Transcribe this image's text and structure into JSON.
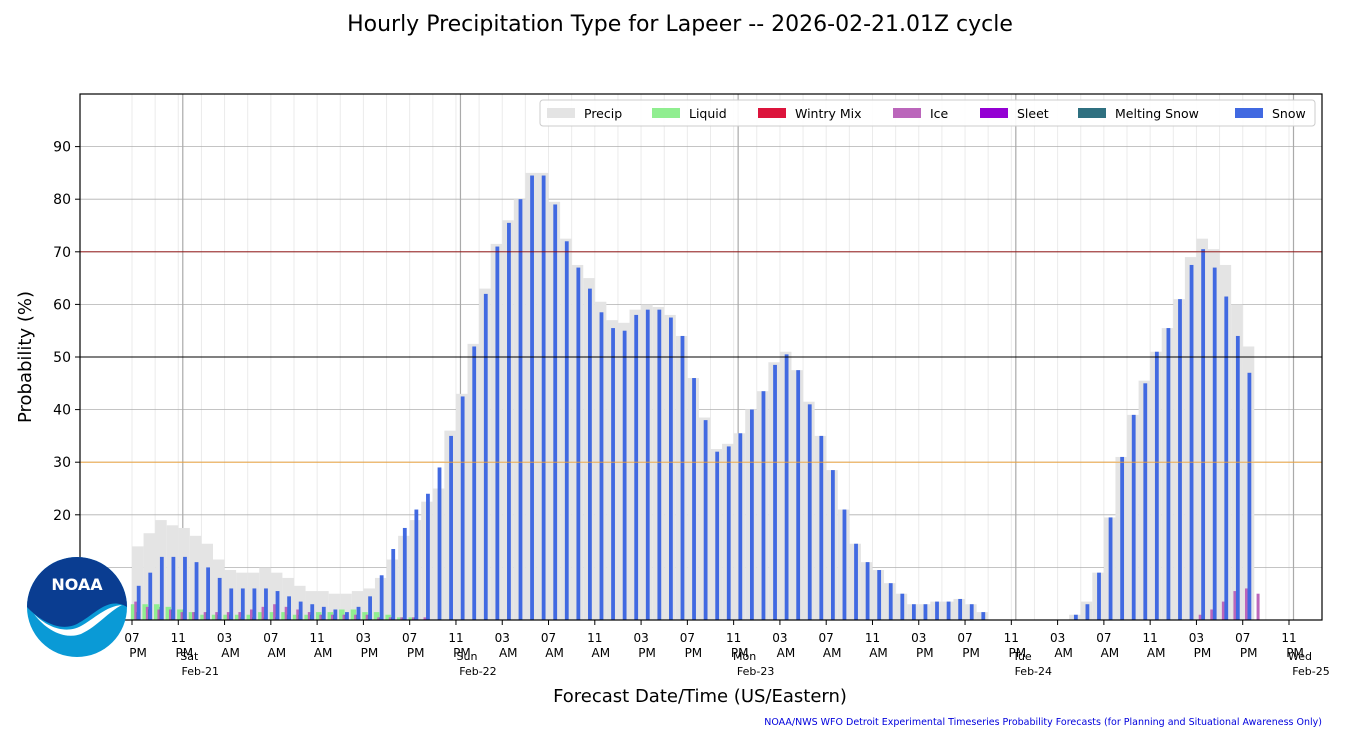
{
  "chart_data": {
    "type": "bar",
    "title": "Hourly Precipitation Type for Lapeer -- 2026-02-21.01Z cycle",
    "xlabel": "Forecast Date/Time (US/Eastern)",
    "ylabel": "Probability (%)",
    "ylim": [
      0,
      100
    ],
    "yticks": [
      20,
      30,
      40,
      50,
      60,
      70,
      80,
      90
    ],
    "grid": true,
    "legend_position": "top-right",
    "reference_lines": [
      {
        "value": 30,
        "color": "#f0a030"
      },
      {
        "value": 50,
        "color": "#000000"
      },
      {
        "value": 70,
        "color": "#8b0000"
      }
    ],
    "x_start": "2026-02-20 19:00",
    "hours_per_bar": 1,
    "tick_labels": [
      {
        "hour": 0,
        "line1": "07",
        "line2": "PM"
      },
      {
        "hour": 4,
        "line1": "11",
        "line2": "PM",
        "day": "Sat",
        "date": "Feb-21"
      },
      {
        "hour": 8,
        "line1": "03",
        "line2": "AM"
      },
      {
        "hour": 12,
        "line1": "07",
        "line2": "AM"
      },
      {
        "hour": 16,
        "line1": "11",
        "line2": "AM"
      },
      {
        "hour": 20,
        "line1": "03",
        "line2": "PM"
      },
      {
        "hour": 24,
        "line1": "07",
        "line2": "PM"
      },
      {
        "hour": 28,
        "line1": "11",
        "line2": "PM",
        "day": "Sun",
        "date": "Feb-22"
      },
      {
        "hour": 32,
        "line1": "03",
        "line2": "AM"
      },
      {
        "hour": 36,
        "line1": "07",
        "line2": "AM"
      },
      {
        "hour": 40,
        "line1": "11",
        "line2": "AM"
      },
      {
        "hour": 44,
        "line1": "03",
        "line2": "PM"
      },
      {
        "hour": 48,
        "line1": "07",
        "line2": "PM"
      },
      {
        "hour": 52,
        "line1": "11",
        "line2": "PM",
        "day": "Mon",
        "date": "Feb-23"
      },
      {
        "hour": 56,
        "line1": "03",
        "line2": "AM"
      },
      {
        "hour": 60,
        "line1": "07",
        "line2": "AM"
      },
      {
        "hour": 64,
        "line1": "11",
        "line2": "AM"
      },
      {
        "hour": 68,
        "line1": "03",
        "line2": "PM"
      },
      {
        "hour": 72,
        "line1": "07",
        "line2": "PM"
      },
      {
        "hour": 76,
        "line1": "11",
        "line2": "PM",
        "day": "Tue",
        "date": "Feb-24"
      },
      {
        "hour": 80,
        "line1": "03",
        "line2": "AM"
      },
      {
        "hour": 84,
        "line1": "07",
        "line2": "AM"
      },
      {
        "hour": 88,
        "line1": "11",
        "line2": "AM"
      },
      {
        "hour": 92,
        "line1": "03",
        "line2": "PM"
      },
      {
        "hour": 96,
        "line1": "07",
        "line2": "PM"
      },
      {
        "hour": 100,
        "line1": "11",
        "line2": "PM",
        "day": "Wed",
        "date": "Feb-25"
      }
    ],
    "series": [
      {
        "name": "Precip",
        "color": "#e4e4e4",
        "values": [
          14,
          16.5,
          19,
          18,
          17.5,
          16,
          14.5,
          11.5,
          9.5,
          9,
          9,
          10,
          9,
          8,
          6.5,
          5.5,
          5.5,
          5,
          5,
          5.5,
          6,
          8,
          11.5,
          16,
          19,
          22.5,
          25,
          36,
          43,
          52.5,
          63,
          71.5,
          76,
          80,
          85,
          85,
          79.5,
          72.5,
          67.5,
          65,
          60.5,
          57,
          56.5,
          59,
          60,
          59.5,
          58,
          54,
          46,
          38.5,
          32.5,
          33.5,
          35.5,
          40,
          43.5,
          49,
          51,
          47.5,
          41.5,
          35,
          28.5,
          21,
          14.5,
          11,
          9.5,
          7,
          5,
          3,
          3,
          3.5,
          3.5,
          4,
          3,
          1.5,
          0,
          0,
          0,
          0,
          0,
          0,
          0,
          1,
          3.5,
          9,
          19.5,
          31,
          39,
          45.5,
          51,
          55.5,
          61,
          69,
          72.5,
          70.5,
          67.5,
          60,
          52,
          0,
          0,
          0,
          0
        ]
      },
      {
        "name": "Liquid",
        "color": "#90ee90",
        "values": [
          3,
          3,
          3,
          2.5,
          2,
          1.5,
          1,
          1,
          1,
          1,
          1,
          1.5,
          1.5,
          1.5,
          1,
          1,
          1.5,
          1.5,
          2,
          2,
          1.5,
          1.5,
          1,
          0.5,
          0.5,
          0,
          0,
          0,
          0,
          0,
          0,
          0,
          0,
          0,
          0,
          0,
          0,
          0,
          0,
          0,
          0,
          0,
          0,
          0,
          0,
          0,
          0,
          0,
          0,
          0,
          0,
          0,
          0,
          0,
          0,
          0,
          0,
          0,
          0,
          0,
          0,
          0,
          0,
          0,
          0,
          0,
          0,
          0,
          0,
          0,
          0,
          0,
          0,
          0,
          0,
          0,
          0,
          0,
          0,
          0,
          0,
          0,
          0,
          0,
          0,
          0,
          0,
          0,
          0,
          0,
          0,
          0,
          0,
          0,
          0,
          0,
          0,
          0,
          0,
          0,
          0
        ]
      },
      {
        "name": "Wintry Mix",
        "color": "#dc143c",
        "values": [
          0,
          0,
          0,
          0,
          0,
          0,
          0,
          0,
          0,
          0,
          0,
          0,
          0,
          0,
          0,
          0,
          0,
          0,
          0,
          0,
          0,
          0,
          0,
          0,
          0,
          0,
          0,
          0,
          0,
          0,
          0,
          0,
          0,
          0,
          0,
          0,
          0,
          0,
          0,
          0,
          0,
          0,
          0,
          0,
          0,
          0,
          0,
          0,
          0,
          0,
          0,
          0,
          0,
          0,
          0,
          0,
          0,
          0,
          0,
          0,
          0,
          0,
          0,
          0,
          0,
          0,
          0,
          0,
          0,
          0,
          0,
          0,
          0,
          0,
          0,
          0,
          0,
          0,
          0,
          0,
          0,
          0,
          0,
          0,
          0,
          0,
          0,
          0,
          0,
          0,
          0,
          0,
          0,
          0,
          0,
          0,
          0,
          0,
          0,
          0,
          0
        ]
      },
      {
        "name": "Ice",
        "color": "#bb66bb",
        "values": [
          3.5,
          2.5,
          2,
          2,
          1.5,
          1.5,
          1.5,
          1.5,
          1.5,
          1.5,
          2,
          2.5,
          3,
          2.5,
          2,
          1.5,
          1,
          1,
          1,
          1,
          1,
          0.5,
          0.5,
          0.5,
          0.5,
          0.5,
          0,
          0,
          0,
          0,
          0,
          0,
          0,
          0,
          0,
          0,
          0,
          0,
          0,
          0,
          0,
          0,
          0,
          0,
          0,
          0,
          0,
          0,
          0,
          0,
          0,
          0,
          0,
          0,
          0,
          0,
          0,
          0,
          0,
          0,
          0,
          0,
          0,
          0,
          0,
          0,
          0,
          0,
          0,
          0,
          0,
          0,
          0,
          0,
          0,
          0,
          0,
          0,
          0,
          0,
          0,
          0,
          0,
          0,
          0,
          0,
          0,
          0,
          0,
          0,
          0,
          0,
          1,
          2,
          3.5,
          5.5,
          6,
          5,
          0,
          0,
          0,
          0
        ]
      },
      {
        "name": "Sleet",
        "color": "#9400d3",
        "values": [
          0,
          0,
          0,
          0,
          0,
          0,
          0,
          0,
          0,
          0,
          0,
          0,
          0,
          0,
          0,
          0,
          0,
          0,
          0,
          0,
          0,
          0,
          0,
          0,
          0,
          0,
          0,
          0,
          0,
          0,
          0,
          0,
          0,
          0,
          0,
          0,
          0,
          0,
          0,
          0,
          0,
          0,
          0,
          0,
          0,
          0,
          0,
          0,
          0,
          0,
          0,
          0,
          0,
          0,
          0,
          0,
          0,
          0,
          0,
          0,
          0,
          0,
          0,
          0,
          0,
          0,
          0,
          0,
          0,
          0,
          0,
          0,
          0,
          0,
          0,
          0,
          0,
          0,
          0,
          0,
          0,
          0,
          0,
          0,
          0,
          0,
          0,
          0,
          0,
          0,
          0,
          0,
          0,
          0,
          0,
          0,
          0,
          0,
          0,
          0,
          0
        ]
      },
      {
        "name": "Melting Snow",
        "color": "#2f7080",
        "values": [
          1.5,
          2,
          2.5,
          2,
          2,
          1.5,
          1.5,
          1,
          1,
          0.5,
          0.5,
          0.5,
          0.5,
          1,
          1,
          1,
          1,
          1,
          1,
          1,
          1,
          0.5,
          0.5,
          0.5,
          0.5,
          0,
          0,
          0,
          0,
          0,
          0,
          0,
          0,
          0,
          0,
          0,
          0,
          0,
          0,
          0,
          0,
          0,
          0,
          0,
          0,
          0,
          0,
          0,
          0,
          0,
          0,
          0,
          0,
          0,
          0,
          0,
          0,
          0,
          0,
          0,
          0,
          0,
          0,
          0,
          0,
          0,
          0,
          0,
          0,
          0,
          0,
          0,
          0,
          0,
          0,
          0,
          0,
          0,
          0,
          0,
          0,
          0,
          0,
          0,
          0,
          0,
          0,
          0,
          0,
          0,
          0,
          0,
          0,
          0,
          0,
          0,
          0,
          0,
          0,
          0,
          0
        ]
      },
      {
        "name": "Snow",
        "color": "#4169e1",
        "values": [
          6.5,
          9,
          12,
          12,
          12,
          11,
          10,
          8,
          6,
          6,
          6,
          6,
          5.5,
          4.5,
          3.5,
          3,
          2.5,
          2,
          1.5,
          2.5,
          4.5,
          8.5,
          13.5,
          17.5,
          21,
          24,
          29,
          35,
          42.5,
          52,
          62,
          71,
          75.5,
          80,
          84.5,
          84.5,
          79,
          72,
          67,
          63,
          58.5,
          55.5,
          55,
          58,
          59,
          59,
          57.5,
          54,
          46,
          38,
          32,
          33,
          35.5,
          40,
          43.5,
          48.5,
          50.5,
          47.5,
          41,
          35,
          28.5,
          21,
          14.5,
          11,
          9.5,
          7,
          5,
          3,
          3,
          3.5,
          3.5,
          4,
          3,
          1.5,
          0,
          0,
          0,
          0,
          0,
          0,
          0,
          1,
          3,
          9,
          19.5,
          31,
          39,
          45,
          51,
          55.5,
          61,
          67.5,
          70.5,
          67,
          61.5,
          54,
          47,
          0,
          0,
          0,
          0
        ]
      }
    ]
  },
  "footer": {
    "credit": "NOAA/NWS WFO Detroit Experimental Timeseries Probability Forecasts (for Planning and Situational Awareness Only)"
  },
  "logo": {
    "text": "NOAA",
    "icon": "noaa-logo-icon",
    "colors": {
      "top": "#0a3d91",
      "bottom": "#0a9ad6",
      "bird": "#ffffff"
    }
  }
}
